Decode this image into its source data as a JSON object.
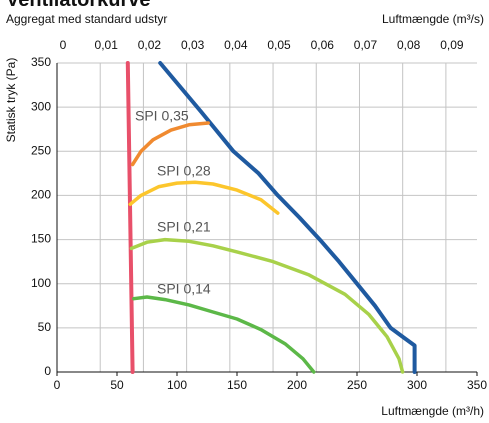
{
  "chart_data": {
    "type": "line",
    "title": "Ventilatorkurve",
    "subtitle": "Aggregat med standard udstyr",
    "xlabel": "Luftmængde (m³/h)",
    "x2label": "Luftmængde (m³/s)",
    "ylabel": "Statisk tryk (Pa)",
    "xlim": [
      0,
      350
    ],
    "xticks": [
      0,
      50,
      100,
      150,
      200,
      250,
      300,
      350
    ],
    "x2lim": [
      0,
      0.0972
    ],
    "x2ticks": [
      0,
      {
        "value": 0.01,
        "label": "0,01"
      },
      {
        "value": 0.02,
        "label": "0,02"
      },
      {
        "value": 0.03,
        "label": "0,03"
      },
      {
        "value": 0.04,
        "label": "0,04"
      },
      {
        "value": 0.05,
        "label": "0,05"
      },
      {
        "value": 0.06,
        "label": "0,06"
      },
      {
        "value": 0.07,
        "label": "0,07"
      },
      {
        "value": 0.08,
        "label": "0,08"
      },
      {
        "value": 0.09,
        "label": "0,09"
      }
    ],
    "ylim": [
      0,
      350
    ],
    "yticks": [
      0,
      50,
      100,
      150,
      200,
      250,
      300,
      350
    ],
    "grid": true,
    "series": [
      {
        "color": "#e8506a",
        "x": [
          63,
          59
        ],
        "values": [
          0,
          350
        ]
      },
      {
        "color": "#1f5aa0",
        "x": [
          86,
          120,
          147,
          168,
          184,
          202,
          219,
          235,
          250,
          265,
          278,
          290,
          298,
          298
        ],
        "values": [
          350,
          295,
          250,
          225,
          200,
          175,
          150,
          125,
          100,
          75,
          50,
          38,
          30,
          0
        ]
      },
      {
        "name": "SPI 0,35",
        "color": "#f08a30",
        "x": [
          63,
          70,
          80,
          95,
          110,
          126
        ],
        "values": [
          235,
          250,
          263,
          274,
          280,
          282
        ]
      },
      {
        "name": "SPI 0,28",
        "color": "#fcc62c",
        "x": [
          61,
          70,
          85,
          100,
          115,
          130,
          150,
          170,
          184
        ],
        "values": [
          190,
          200,
          210,
          214,
          215,
          213,
          206,
          195,
          180
        ]
      },
      {
        "name": "SPI 0,21",
        "color": "#a8d14a",
        "x": [
          62,
          75,
          90,
          110,
          130,
          150,
          180,
          210,
          240,
          260,
          275,
          285,
          288
        ],
        "values": [
          140,
          147,
          150,
          148,
          143,
          136,
          125,
          110,
          88,
          65,
          40,
          15,
          0
        ]
      },
      {
        "name": "SPI 0,14",
        "color": "#5cb848",
        "x": [
          64,
          75,
          90,
          110,
          130,
          150,
          170,
          190,
          205,
          214
        ],
        "values": [
          83,
          85,
          82,
          76,
          68,
          60,
          48,
          32,
          15,
          0
        ]
      }
    ]
  }
}
